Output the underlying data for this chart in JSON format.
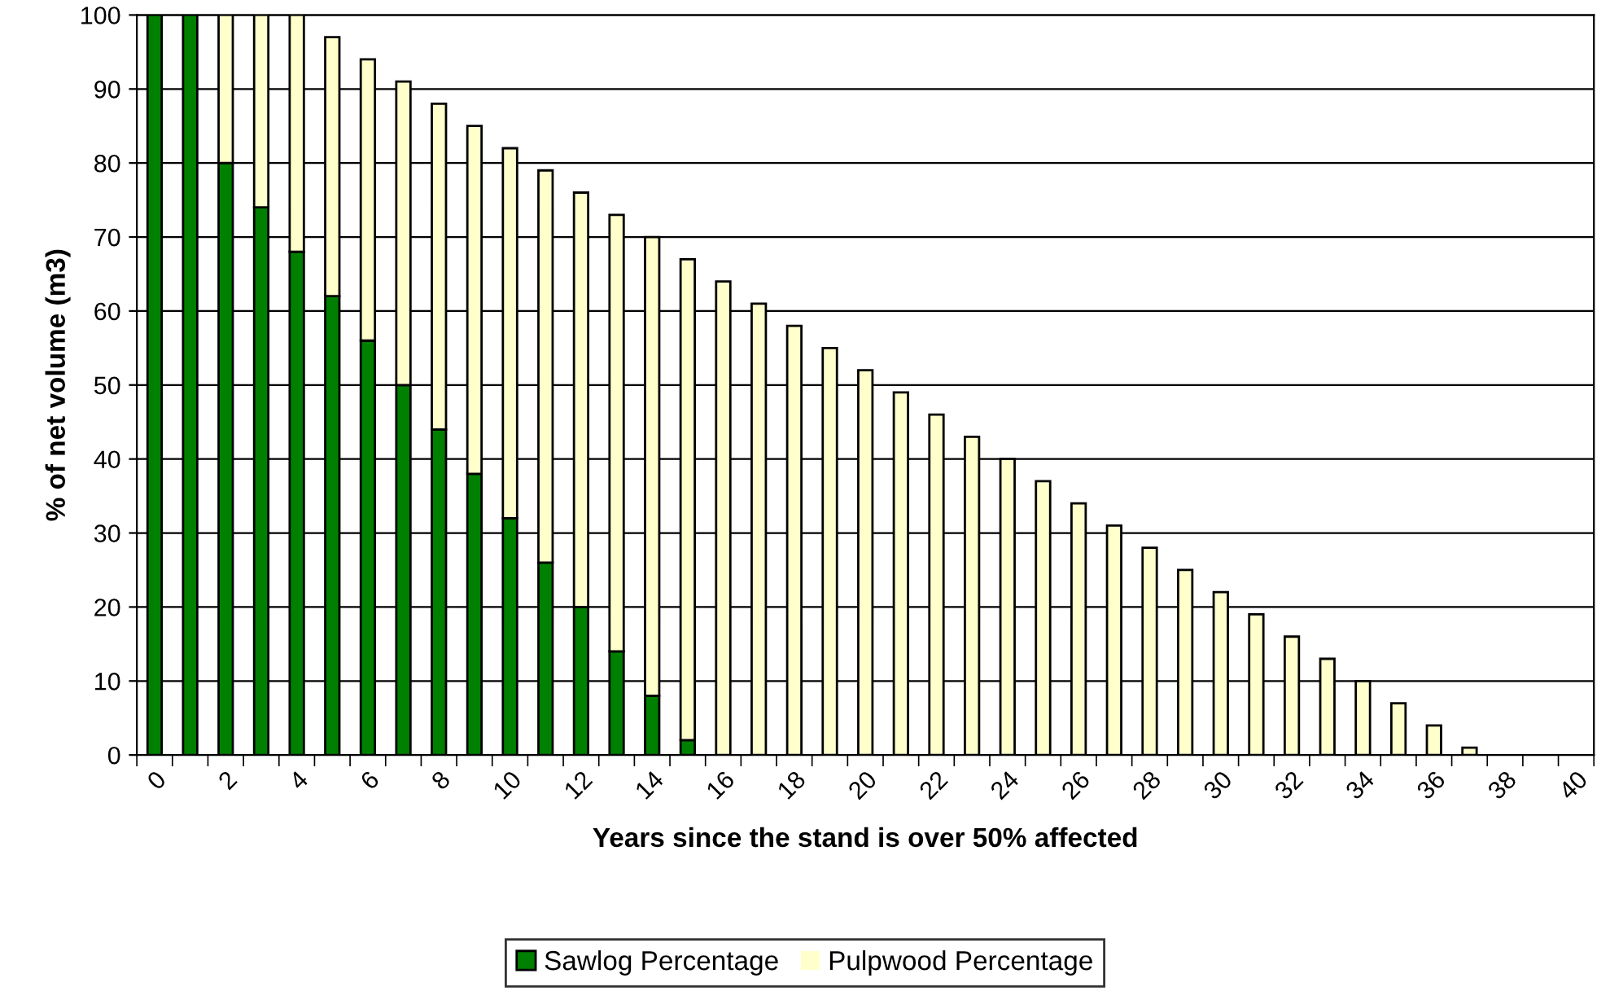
{
  "chart_data": {
    "type": "bar",
    "stacked": true,
    "xlabel": "Years since the stand is over 50% affected",
    "ylabel": "% of net volume (m3)",
    "categories": [
      "0",
      null,
      "2",
      null,
      "4",
      null,
      "6",
      null,
      "8",
      null,
      "10",
      null,
      "12",
      null,
      "14",
      null,
      "16",
      null,
      "18",
      null,
      "20",
      null,
      "22",
      null,
      "24",
      null,
      "26",
      null,
      "28",
      null,
      "30",
      null,
      "32",
      null,
      "34",
      null,
      "36",
      null,
      "38",
      null,
      "40"
    ],
    "series": [
      {
        "name": "Sawlog Percentage",
        "color": "#008000",
        "values": [
          100,
          100,
          80,
          74,
          68,
          62,
          56,
          50,
          44,
          38,
          32,
          26,
          20,
          14,
          8,
          2,
          0,
          0,
          0,
          0,
          0,
          0,
          0,
          0,
          0,
          0,
          0,
          0,
          0,
          0,
          0,
          0,
          0,
          0,
          0,
          0,
          0,
          0,
          0,
          0,
          0
        ]
      },
      {
        "name": "Pulpwood Percentage",
        "color": "#ffffcc",
        "values": [
          0,
          0,
          20,
          26,
          32,
          35,
          38,
          41,
          44,
          47,
          50,
          53,
          56,
          59,
          62,
          65,
          64,
          61,
          58,
          55,
          52,
          49,
          46,
          43,
          40,
          37,
          34,
          31,
          28,
          25,
          22,
          19,
          16,
          13,
          10,
          7,
          4,
          1,
          0,
          0,
          0
        ]
      }
    ],
    "ylim": [
      0,
      100
    ],
    "yticks": [
      0,
      10,
      20,
      30,
      40,
      50,
      60,
      70,
      80,
      90,
      100
    ],
    "grid": "y",
    "legend": "bottom"
  }
}
